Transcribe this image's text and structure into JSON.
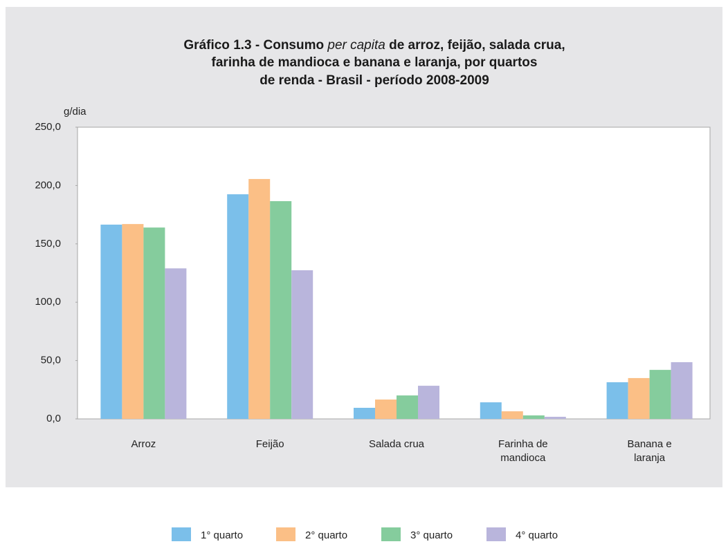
{
  "chart_data": {
    "type": "bar",
    "title": [
      [
        "Gráfico 1.3 - Consumo ",
        "per capita",
        " de arroz, feijão, salada crua,"
      ],
      [
        "farinha de mandioca e banana e laranja, por quartos"
      ],
      [
        "de renda - Brasil - período 2008-2009"
      ]
    ],
    "y_label": "g/dia",
    "categories": [
      [
        "Arroz"
      ],
      [
        "Feijão"
      ],
      [
        "Salada crua"
      ],
      [
        "Farinha de",
        "mandioca"
      ],
      [
        "Banana e",
        "laranja"
      ]
    ],
    "series": [
      {
        "name": "1° quarto",
        "color": "#7bbfea",
        "values": [
          166.5,
          192.5,
          9.5,
          14.2,
          31.4
        ]
      },
      {
        "name": "2° quarto",
        "color": "#fbbf86",
        "values": [
          167,
          205.6,
          16.6,
          6.5,
          35
        ]
      },
      {
        "name": "3° quarto",
        "color": "#85cc9d",
        "values": [
          164,
          186.6,
          20.1,
          3,
          42
        ]
      },
      {
        "name": "4° quarto",
        "color": "#b9b5dc",
        "values": [
          129,
          127.4,
          28.4,
          1.8,
          48.6
        ]
      }
    ],
    "ylim": [
      0,
      250
    ],
    "yticks": [
      {
        "value": 0,
        "label": "0,0"
      },
      {
        "value": 50,
        "label": "50,0"
      },
      {
        "value": 100,
        "label": "100,0"
      },
      {
        "value": 150,
        "label": "150,0"
      },
      {
        "value": 200,
        "label": "200,0"
      },
      {
        "value": 250,
        "label": "250,0"
      }
    ],
    "grid": false,
    "legend": "bottom"
  }
}
